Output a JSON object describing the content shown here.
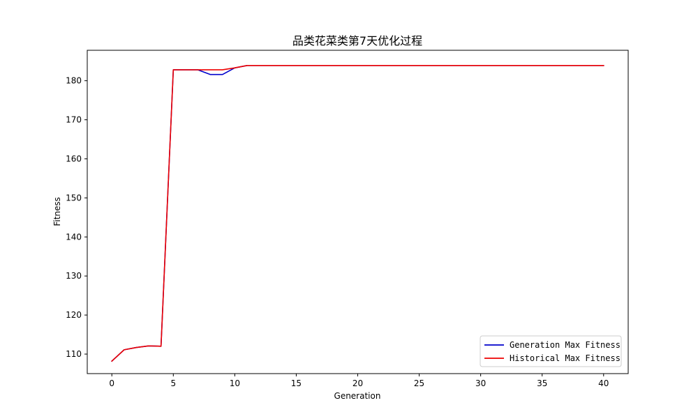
{
  "colors": {
    "generation_line": "#0000cc",
    "historical_line": "#ee0000",
    "axes": "#000000",
    "background": "#ffffff",
    "legend_border": "#cccccc"
  },
  "chart_data": {
    "type": "line",
    "title": "品类花菜类第7天优化过程",
    "xlabel": "Generation",
    "ylabel": "Fitness",
    "xlim": [
      -2,
      42
    ],
    "ylim": [
      105,
      187.8
    ],
    "xticks": [
      0,
      5,
      10,
      15,
      20,
      25,
      30,
      35,
      40
    ],
    "yticks": [
      110,
      120,
      130,
      140,
      150,
      160,
      170,
      180
    ],
    "grid": false,
    "legend_position": "lower-right",
    "x": [
      0,
      1,
      2,
      3,
      4,
      5,
      6,
      7,
      8,
      9,
      10,
      11,
      12,
      13,
      14,
      15,
      16,
      17,
      18,
      19,
      20,
      21,
      22,
      23,
      24,
      25,
      26,
      27,
      28,
      29,
      30,
      31,
      32,
      33,
      34,
      35,
      36,
      37,
      38,
      39,
      40
    ],
    "series": [
      {
        "name": "Generation Max Fitness",
        "color": "#0000cc",
        "values": [
          108.2,
          111.1,
          111.7,
          112.1,
          112.0,
          182.8,
          182.8,
          182.8,
          181.6,
          181.6,
          183.3,
          183.9,
          183.9,
          183.9,
          183.9,
          183.9,
          183.9,
          183.9,
          183.9,
          183.9,
          183.9,
          183.9,
          183.9,
          183.9,
          183.9,
          183.9,
          183.9,
          183.9,
          183.9,
          183.9,
          183.9,
          183.9,
          183.9,
          183.9,
          183.9,
          183.9,
          183.9,
          183.9,
          183.9,
          183.9,
          183.9
        ]
      },
      {
        "name": "Historical Max Fitness",
        "color": "#ee0000",
        "values": [
          108.2,
          111.1,
          111.7,
          112.1,
          112.0,
          182.8,
          182.8,
          182.8,
          182.8,
          182.8,
          183.3,
          183.9,
          183.9,
          183.9,
          183.9,
          183.9,
          183.9,
          183.9,
          183.9,
          183.9,
          183.9,
          183.9,
          183.9,
          183.9,
          183.9,
          183.9,
          183.9,
          183.9,
          183.9,
          183.9,
          183.9,
          183.9,
          183.9,
          183.9,
          183.9,
          183.9,
          183.9,
          183.9,
          183.9,
          183.9,
          183.9
        ]
      }
    ]
  }
}
